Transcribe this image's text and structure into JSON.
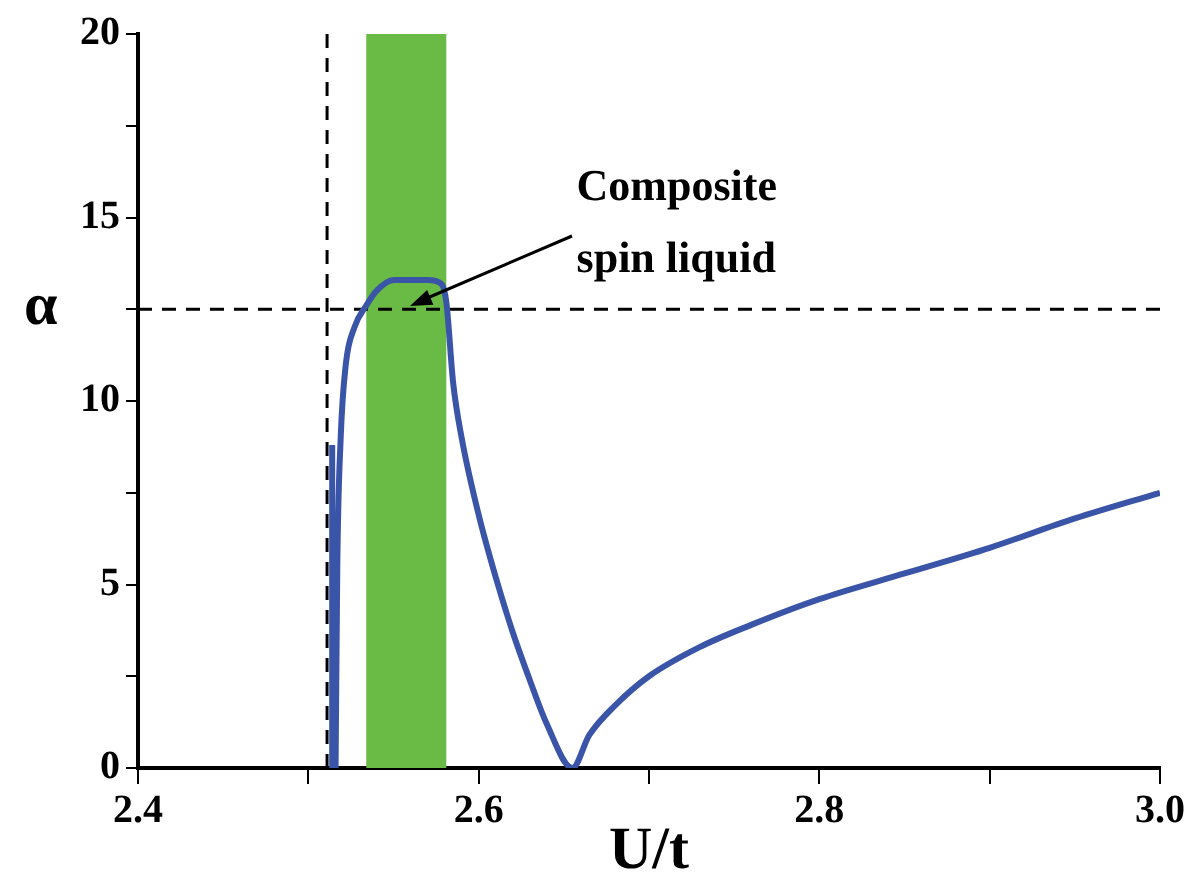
{
  "chart_data": {
    "type": "line",
    "xlabel": "U/t",
    "ylabel": "α",
    "x": [
      2.514,
      2.514,
      2.515,
      2.516,
      2.517,
      2.519,
      2.522,
      2.527,
      2.534,
      2.54,
      2.55,
      2.56,
      2.57,
      2.578,
      2.581,
      2.585,
      2.59,
      2.6,
      2.61,
      2.62,
      2.63,
      2.64,
      2.655,
      2.665,
      2.68,
      2.7,
      2.73,
      2.76,
      2.8,
      2.85,
      2.9,
      2.95,
      3.0
    ],
    "series": [
      {
        "color": "#3a55a8",
        "values": [
          0,
          8.8,
          null,
          0,
          5.5,
          9,
          11,
          12,
          12.6,
          13,
          13.3,
          13.3,
          13.3,
          13.2,
          12.7,
          10.5,
          9,
          6.9,
          5.2,
          3.7,
          2.4,
          1.2,
          0,
          0.9,
          1.7,
          2.5,
          3.3,
          3.9,
          4.6,
          5.3,
          6.0,
          6.8,
          7.5
        ]
      }
    ],
    "xlim": [
      2.4,
      3.0
    ],
    "xticks": [
      2.4,
      {
        "value": 2.5,
        "label": null
      },
      2.6,
      {
        "value": 2.7,
        "label": null
      },
      2.8,
      {
        "value": 2.9,
        "label": null
      },
      {
        "value": 3.0,
        "label": "3.0"
      }
    ],
    "ylim": [
      0,
      20
    ],
    "yticks": [
      0,
      {
        "value": 2.5,
        "label": null
      },
      5,
      {
        "value": 7.5,
        "label": null
      },
      10,
      {
        "value": 12.5,
        "label": null
      },
      15,
      {
        "value": 17.5,
        "label": null
      },
      20
    ],
    "grid": false,
    "legend": false,
    "marker": "none",
    "line_style": "solid",
    "ref_lines": [
      {
        "axis": "x",
        "value": 2.511,
        "color": "#000000",
        "line_style": "dashed"
      },
      {
        "axis": "y",
        "value": 12.5,
        "color": "#000000",
        "line_style": "dashed"
      }
    ],
    "bands": [
      {
        "axis": "x",
        "from": 2.534,
        "to": 2.581,
        "color": "#6abb45"
      }
    ],
    "annotations": [
      {
        "text": "Composite\nspin liquid",
        "x": 2.56,
        "y": 12.6
      }
    ]
  }
}
